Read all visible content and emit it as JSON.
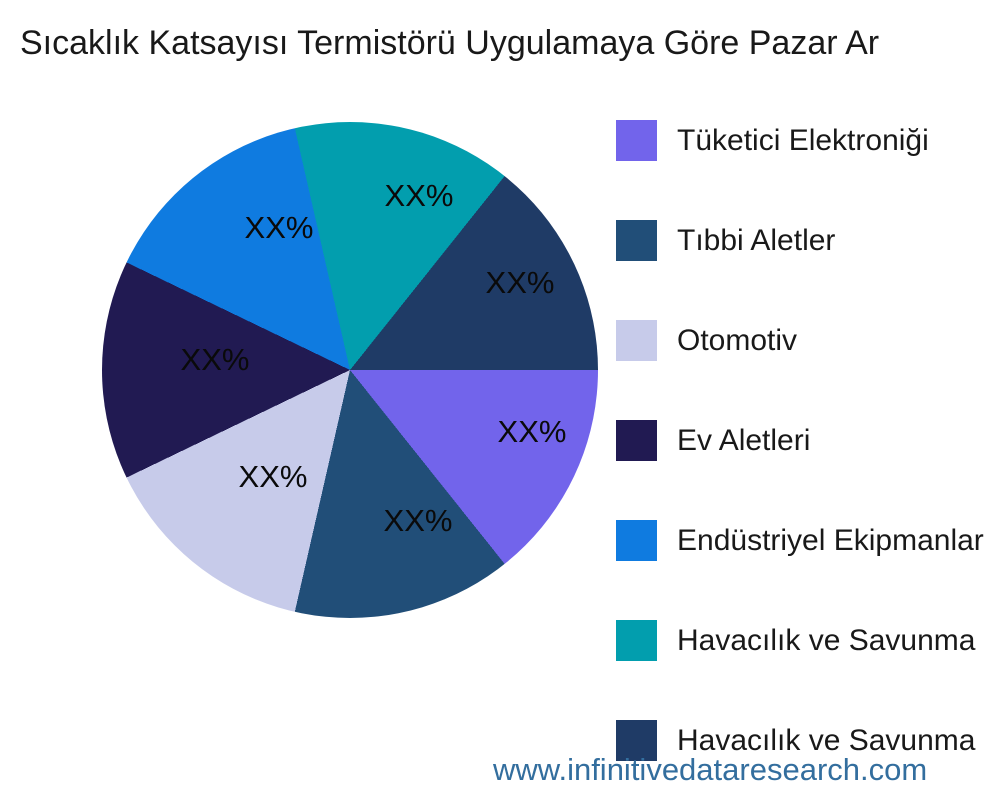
{
  "header": {
    "title": "Sıcaklık Katsayısı Termistörü Uygulamaya Göre Pazar Ar"
  },
  "watermark": {
    "text": "www.infinitivedataresearch.com",
    "color": "#336E9E"
  },
  "chart_data": {
    "type": "pie",
    "title": "Sıcaklık Katsayısı Termistörü Uygulamaya Göre Pazar Ar",
    "direction": "clockwise",
    "start_angle_deg": 0,
    "legend_position": "right",
    "values_masked": "XX%",
    "slices": [
      {
        "label": "Tüketici Elektroniği",
        "value_label": "XX%",
        "value_pct": 14.3,
        "color": "#7264EB"
      },
      {
        "label": "Tıbbi Aletler",
        "value_label": "XX%",
        "value_pct": 14.3,
        "color": "#214E78"
      },
      {
        "label": "Otomotiv",
        "value_label": "XX%",
        "value_pct": 14.3,
        "color": "#C7CBEA"
      },
      {
        "label": "Ev Aletleri",
        "value_label": "XX%",
        "value_pct": 14.3,
        "color": "#211A52"
      },
      {
        "label": "Endüstriyel Ekipmanlar",
        "value_label": "XX%",
        "value_pct": 14.3,
        "color": "#0F7BE0"
      },
      {
        "label": "Havacılık ve Savunma",
        "value_label": "XX%",
        "value_pct": 14.3,
        "color": "#029EAE"
      },
      {
        "label": "Havacılık ve Savunma",
        "value_label": "XX%",
        "value_pct": 14.3,
        "color": "#1F3B66"
      }
    ]
  }
}
